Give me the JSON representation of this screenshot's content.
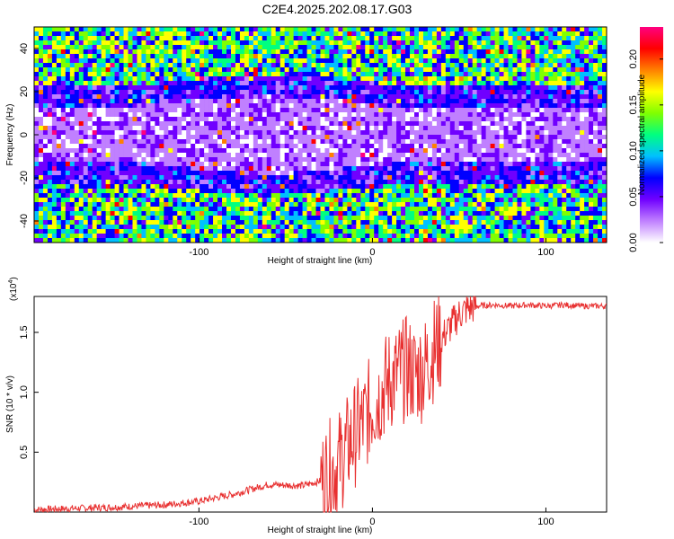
{
  "title": "C2E4.2025.202.08.17.G03",
  "chart_data": [
    {
      "type": "heatmap",
      "xlabel": "Height of straight line (km)",
      "ylabel": "Frequency (Hz)",
      "xlim": [
        -195,
        135
      ],
      "ylim": [
        -50,
        50
      ],
      "xticks": [
        -100,
        0,
        100
      ],
      "yticks": [
        -40,
        -20,
        0,
        20,
        40
      ],
      "colorbar": {
        "label": "Normalized spectral amplitude",
        "range": [
          0.0,
          0.235
        ],
        "ticks": [
          0.0,
          0.05,
          0.1,
          0.15,
          0.2
        ],
        "tick_labels": [
          "0.00",
          "0.05",
          "0.10",
          "0.15",
          "0.20"
        ],
        "colormap": [
          "#ffffff",
          "#c080ff",
          "#7000ff",
          "#0000ff",
          "#00c0ff",
          "#00ff80",
          "#80ff00",
          "#ffff00",
          "#ff8000",
          "#ff0000",
          "#ff0080"
        ]
      },
      "description_values": {
        "low_frequency_band_halfwidth_hz": 12
      }
    },
    {
      "type": "line",
      "xlabel": "Height of straight line (km)",
      "ylabel": "SNR (10 * v/v)",
      "y_multiplier_label": "(x10",
      "y_multiplier_exp": "4",
      "y_multiplier_close": ")",
      "xlim": [
        -195,
        135
      ],
      "ylim": [
        0,
        18000
      ],
      "xticks": [
        -100,
        0,
        100
      ],
      "yticks": [
        5000,
        10000,
        15000
      ],
      "ytick_labels": [
        "0.5",
        "1.0",
        "1.5"
      ],
      "color": "#e83030",
      "series": [
        {
          "x": [
            -195,
            -150,
            -120,
            -100,
            -80,
            -60,
            -40,
            -30,
            -20,
            -10,
            -5,
            0,
            5,
            10,
            15,
            20,
            25,
            30,
            35,
            40,
            45,
            50,
            55,
            60,
            70,
            80,
            90,
            100,
            110,
            120,
            135
          ],
          "values": [
            200,
            400,
            600,
            900,
            1500,
            2300,
            2200,
            2600,
            4000,
            6500,
            7500,
            9000,
            10000,
            11000,
            11500,
            12000,
            11500,
            12000,
            13500,
            14500,
            15500,
            16500,
            17000,
            17200,
            17300,
            17200,
            17300,
            17200,
            17300,
            17200,
            17200
          ]
        }
      ]
    }
  ],
  "ticks": {
    "x": [
      "-100",
      "0",
      "100"
    ],
    "y_top": [
      "-40",
      "-20",
      "0",
      "20",
      "40"
    ]
  },
  "labels": {
    "x": "Height of straight line (km)",
    "y_top": "Frequency (Hz)",
    "y_bottom": "SNR (10 * v/v)",
    "colorbar": "Normalized spectral amplitude"
  }
}
